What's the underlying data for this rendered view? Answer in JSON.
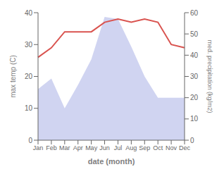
{
  "chart_data": {
    "type": "line",
    "categories": [
      "Jan",
      "Feb",
      "Mar",
      "Apr",
      "May",
      "Jun",
      "Jul",
      "Aug",
      "Sep",
      "Oct",
      "Nov",
      "Dec"
    ],
    "series": [
      {
        "type": "area",
        "axis": "y2",
        "color": "#b0b8e8",
        "values": [
          24,
          29,
          15,
          26,
          38,
          58,
          57,
          44,
          30,
          20,
          20,
          20
        ]
      },
      {
        "type": "line",
        "axis": "y",
        "color": "#d9534f",
        "values": [
          26,
          29,
          34,
          34,
          34,
          37,
          38,
          37,
          38,
          37,
          30,
          29
        ]
      }
    ],
    "x_label": "date (month)",
    "y_label": "max temp (C)",
    "y2_label": "med. precipitation (kg/m2)",
    "ylim": [
      0,
      40
    ],
    "yticks": [
      0,
      10,
      20,
      30,
      40
    ],
    "y2lim": [
      0,
      60
    ],
    "y2ticks": [
      0,
      10,
      20,
      30,
      40,
      50,
      60
    ],
    "grid": false
  }
}
